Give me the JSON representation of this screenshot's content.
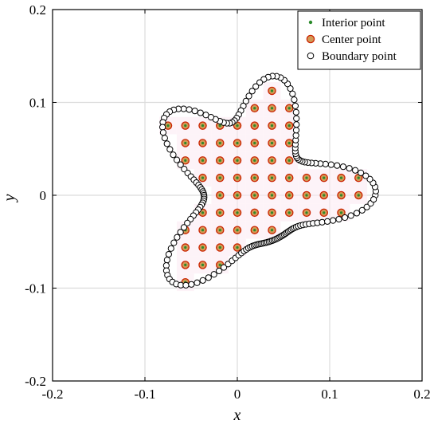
{
  "chart_data": {
    "type": "scatter",
    "xlabel": "x",
    "ylabel": "y",
    "xlim": [
      -0.2,
      0.2
    ],
    "ylim": [
      -0.2,
      0.2
    ],
    "grid": true,
    "legend_position": "top-right",
    "xticks": [
      "-0.2",
      "-0.1",
      "0",
      "0.1",
      "0.2"
    ],
    "yticks": [
      "-0.2",
      "-0.1",
      "0",
      "0.1",
      "0.2"
    ],
    "grid_spacing": 0.01875,
    "boundary_shape": {
      "description_free_params": true,
      "center": [
        0.0,
        0.0
      ],
      "base_radius": 0.1,
      "lobe_amplitude": 0.035,
      "lobes": 4
    },
    "series": [
      {
        "name": "Interior point",
        "color": "#2a8a2a",
        "marker": "dot"
      },
      {
        "name": "Center point",
        "color": "#cc2200",
        "marker": "circle"
      },
      {
        "name": "Boundary point",
        "color": "#000000",
        "marker": "open-circle",
        "count": 180
      }
    ]
  }
}
